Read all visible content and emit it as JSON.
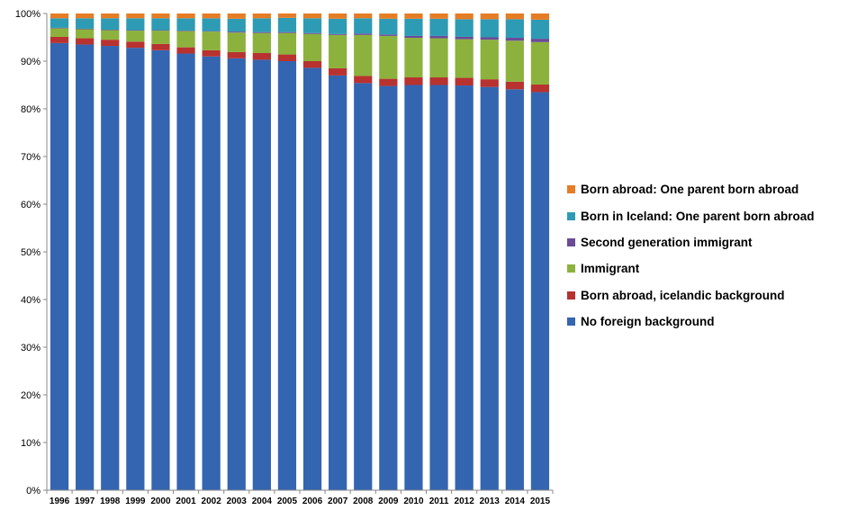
{
  "chart_data": {
    "type": "bar",
    "stacked": true,
    "percent_stacked": true,
    "categories": [
      "1996",
      "1997",
      "1998",
      "1999",
      "2000",
      "2001",
      "2002",
      "2003",
      "2004",
      "2005",
      "2006",
      "2007",
      "2008",
      "2009",
      "2010",
      "2011",
      "2012",
      "2013",
      "2014",
      "2015"
    ],
    "ylim": [
      0,
      100
    ],
    "y_ticks": [
      "0%",
      "10%",
      "20%",
      "30%",
      "40%",
      "50%",
      "60%",
      "70%",
      "80%",
      "90%",
      "100%"
    ],
    "grid": false,
    "legend_position": "right",
    "series": [
      {
        "name": "No foreign background",
        "color": "#3465B0",
        "values": [
          93.8,
          93.5,
          93.2,
          92.8,
          92.3,
          91.6,
          91.0,
          90.6,
          90.3,
          90.0,
          88.6,
          87.0,
          85.4,
          84.8,
          85.0,
          85.0,
          84.9,
          84.6,
          84.1,
          83.5
        ]
      },
      {
        "name": "Born abroad, icelandic background",
        "color": "#B83230",
        "values": [
          1.3,
          1.3,
          1.3,
          1.3,
          1.3,
          1.3,
          1.3,
          1.3,
          1.4,
          1.4,
          1.4,
          1.5,
          1.5,
          1.5,
          1.6,
          1.6,
          1.6,
          1.6,
          1.6,
          1.6
        ]
      },
      {
        "name": "Immigrant",
        "color": "#8CB23D",
        "values": [
          1.8,
          1.9,
          2.0,
          2.3,
          2.8,
          3.4,
          3.9,
          4.1,
          4.2,
          4.5,
          5.7,
          7.0,
          8.6,
          9.0,
          8.3,
          8.2,
          8.1,
          8.3,
          8.6,
          8.9
        ]
      },
      {
        "name": "Second generation immigrant",
        "color": "#6B4B96",
        "values": [
          0.1,
          0.1,
          0.1,
          0.1,
          0.1,
          0.1,
          0.1,
          0.2,
          0.2,
          0.2,
          0.2,
          0.2,
          0.3,
          0.3,
          0.4,
          0.5,
          0.5,
          0.5,
          0.6,
          0.7
        ]
      },
      {
        "name": "Born in Iceland: One parent born abroad",
        "color": "#2E9BB5",
        "values": [
          2.0,
          2.2,
          2.4,
          2.5,
          2.5,
          2.6,
          2.7,
          2.7,
          2.9,
          3.0,
          3.1,
          3.2,
          3.2,
          3.3,
          3.6,
          3.6,
          3.7,
          3.8,
          3.9,
          4.0
        ]
      },
      {
        "name": "Born abroad: One parent born abroad",
        "color": "#E57D25",
        "values": [
          1.0,
          1.0,
          1.0,
          1.0,
          1.0,
          1.0,
          1.0,
          1.1,
          1.0,
          0.9,
          1.0,
          1.1,
          1.0,
          1.1,
          1.1,
          1.1,
          1.2,
          1.2,
          1.2,
          1.3
        ]
      }
    ]
  },
  "legend": [
    {
      "label": "Born abroad: One parent born abroad",
      "color": "#E57D25"
    },
    {
      "label": "Born in Iceland: One parent born abroad",
      "color": "#2E9BB5"
    },
    {
      "label": "Second generation immigrant",
      "color": "#6B4B96"
    },
    {
      "label": "Immigrant",
      "color": "#8CB23D"
    },
    {
      "label": "Born abroad, icelandic background",
      "color": "#B83230"
    },
    {
      "label": "No foreign background",
      "color": "#3465B0"
    }
  ]
}
